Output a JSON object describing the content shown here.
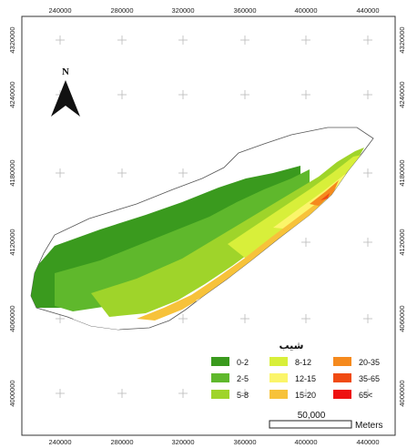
{
  "map": {
    "north_label": "N",
    "x_ticks": [
      "240000",
      "280000",
      "320000",
      "360000",
      "400000",
      "440000"
    ],
    "y_ticks": [
      "4320000",
      "4240000",
      "4180000",
      "4120000",
      "4060000",
      "4000000"
    ],
    "legend": {
      "title": "شیب",
      "items": [
        {
          "label": "0-2",
          "color": "#3a9a1e"
        },
        {
          "label": "2-5",
          "color": "#5fb82c"
        },
        {
          "label": "5-8",
          "color": "#9fd42a"
        },
        {
          "label": "8-12",
          "color": "#d8ef3a"
        },
        {
          "label": "12-15",
          "color": "#fbf56a"
        },
        {
          "label": "15-20",
          "color": "#f7c23a"
        },
        {
          "label": "20-35",
          "color": "#f58a1e"
        },
        {
          "label": "35-65",
          "color": "#f04a12"
        },
        {
          "label": "65<",
          "color": "#ee1111"
        }
      ]
    },
    "scale": {
      "value": "50,000",
      "unit": "Meters"
    }
  }
}
